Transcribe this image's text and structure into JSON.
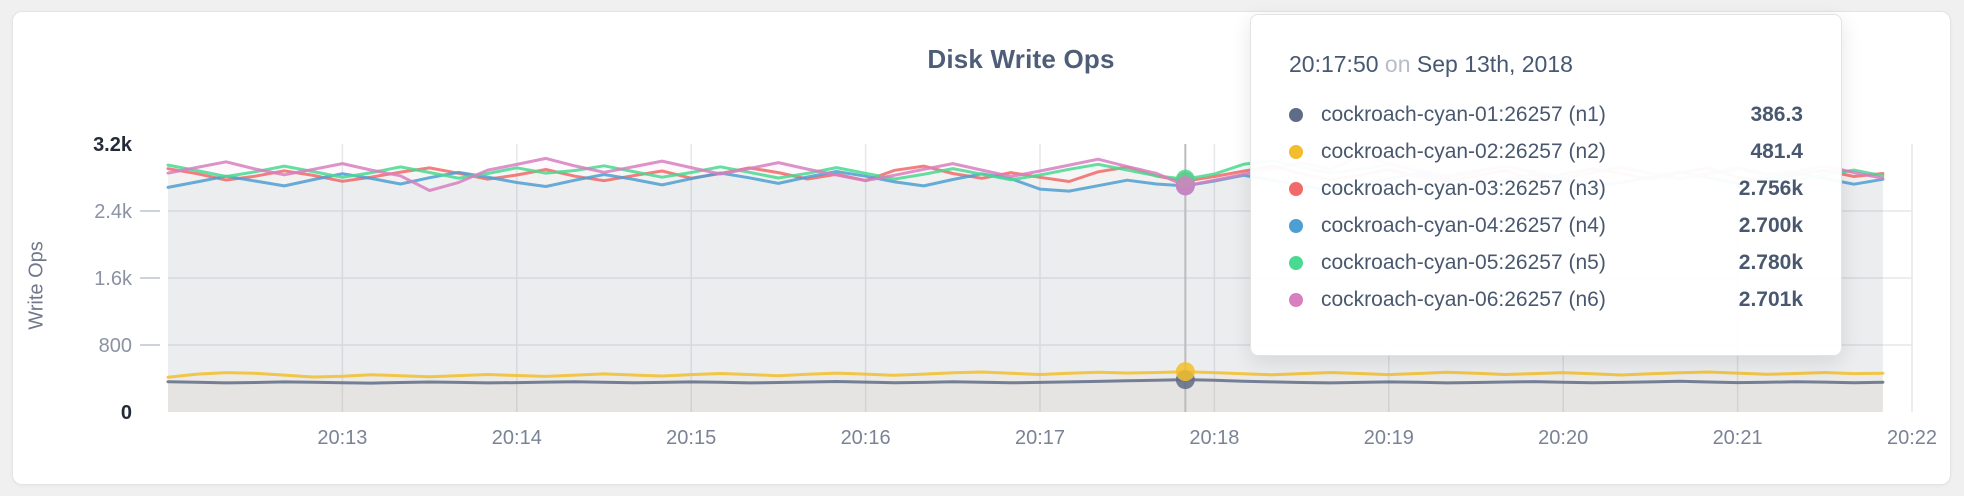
{
  "card": {
    "kind": "metric-panel"
  },
  "chart_data": {
    "type": "line",
    "title": "Disk Write Ops",
    "xlabel": "",
    "ylabel": "Write Ops",
    "ylim": [
      0,
      3200
    ],
    "grid": true,
    "legend_position": "tooltip",
    "x_domain": [
      "20:12:00",
      "20:22:00"
    ],
    "x_start": "20:12:00",
    "x_step_seconds": 10,
    "hover_time": "20:17:50",
    "x_ticks": [
      {
        "label": "20:13",
        "time": "20:13:00"
      },
      {
        "label": "20:14",
        "time": "20:14:00"
      },
      {
        "label": "20:15",
        "time": "20:15:00"
      },
      {
        "label": "20:16",
        "time": "20:16:00"
      },
      {
        "label": "20:17",
        "time": "20:17:00"
      },
      {
        "label": "20:18",
        "time": "20:18:00"
      },
      {
        "label": "20:19",
        "time": "20:19:00"
      },
      {
        "label": "20:20",
        "time": "20:20:00"
      },
      {
        "label": "20:21",
        "time": "20:21:00"
      },
      {
        "label": "20:22",
        "time": "20:22:00"
      }
    ],
    "y_ticks": [
      {
        "label": "3.2k",
        "value": 3200,
        "dark": true,
        "grid": false
      },
      {
        "label": "2.4k",
        "value": 2400,
        "dark": false,
        "grid": true
      },
      {
        "label": "1.6k",
        "value": 1600,
        "dark": false,
        "grid": true
      },
      {
        "label": "800",
        "value": 800,
        "dark": false,
        "grid": true
      },
      {
        "label": "0",
        "value": 0,
        "dark": true,
        "grid": false
      }
    ],
    "series": [
      {
        "name": "cockroach-cyan-01:26257 (n1)",
        "color": "#5F6C87",
        "values": [
          362,
          355,
          348,
          352,
          360,
          356,
          350,
          345,
          352,
          358,
          353,
          347,
          351,
          357,
          362,
          356,
          349,
          354,
          360,
          355,
          348,
          352,
          358,
          364,
          357,
          350,
          354,
          361,
          356,
          349,
          353,
          359,
          365,
          372,
          380,
          386.3,
          378,
          368,
          359,
          352,
          347,
          353,
          360,
          355,
          348,
          352,
          358,
          363,
          356,
          349,
          354,
          360,
          366,
          358,
          351,
          355,
          362,
          357,
          350,
          356
        ]
      },
      {
        "name": "cockroach-cyan-02:26257 (n2)",
        "color": "#F2BE2C",
        "values": [
          415,
          452,
          470,
          462,
          440,
          418,
          428,
          445,
          432,
          420,
          435,
          448,
          436,
          425,
          440,
          455,
          442,
          430,
          446,
          460,
          448,
          434,
          450,
          464,
          452,
          438,
          452,
          468,
          478,
          462,
          448,
          462,
          475,
          466,
          472,
          481.4,
          470,
          456,
          444,
          458,
          472,
          460,
          446,
          460,
          474,
          462,
          448,
          458,
          470,
          456,
          442,
          456,
          468,
          478,
          464,
          450,
          460,
          472,
          458,
          463
        ]
      },
      {
        "name": "cockroach-cyan-03:26257 (n3)",
        "color": "#F16969",
        "values": [
          2905,
          2845,
          2770,
          2815,
          2880,
          2825,
          2755,
          2805,
          2865,
          2915,
          2850,
          2780,
          2830,
          2895,
          2815,
          2762,
          2822,
          2878,
          2792,
          2848,
          2915,
          2858,
          2782,
          2838,
          2764,
          2886,
          2936,
          2848,
          2790,
          2858,
          2802,
          2752,
          2868,
          2925,
          2818,
          2756,
          2812,
          2876,
          2934,
          2846,
          2772,
          2828,
          2896,
          2812,
          2754,
          2820,
          2886,
          2764,
          2840,
          2906,
          2848,
          2780,
          2856,
          2916,
          2800,
          2762,
          2828,
          2886,
          2812,
          2848
        ]
      },
      {
        "name": "cockroach-cyan-04:26257 (n4)",
        "color": "#4E9FD1",
        "values": [
          2682,
          2748,
          2815,
          2758,
          2700,
          2775,
          2845,
          2788,
          2722,
          2798,
          2862,
          2805,
          2740,
          2692,
          2768,
          2836,
          2778,
          2712,
          2786,
          2854,
          2796,
          2730,
          2806,
          2872,
          2815,
          2748,
          2700,
          2776,
          2844,
          2786,
          2662,
          2638,
          2702,
          2768,
          2722,
          2700,
          2758,
          2826,
          2768,
          2702,
          2652,
          2718,
          2786,
          2848,
          2780,
          2712,
          2770,
          2838,
          2776,
          2702,
          2738,
          2806,
          2866,
          2798,
          2730,
          2788,
          2854,
          2788,
          2720,
          2778
        ]
      },
      {
        "name": "cockroach-cyan-05:26257 (n5)",
        "color": "#49D990",
        "values": [
          2948,
          2882,
          2812,
          2868,
          2936,
          2870,
          2802,
          2858,
          2926,
          2860,
          2792,
          2848,
          2916,
          2852,
          2884,
          2940,
          2872,
          2804,
          2860,
          2928,
          2862,
          2794,
          2850,
          2918,
          2850,
          2782,
          2838,
          2906,
          2840,
          2772,
          2830,
          2898,
          2958,
          2890,
          2822,
          2780,
          2842,
          2958,
          3002,
          2920,
          2852,
          2898,
          2956,
          2888,
          2820,
          2878,
          2936,
          2868,
          2800,
          2858,
          2918,
          2850,
          2782,
          2840,
          2898,
          2832,
          2770,
          2830,
          2888,
          2820
        ]
      },
      {
        "name": "cockroach-cyan-06:26257 (n6)",
        "color": "#D77FBF",
        "values": [
          2852,
          2920,
          2988,
          2902,
          2832,
          2898,
          2966,
          2888,
          2820,
          2645,
          2742,
          2888,
          2956,
          3028,
          2938,
          2862,
          2928,
          2996,
          2918,
          2842,
          2908,
          2978,
          2900,
          2830,
          2762,
          2828,
          2898,
          2966,
          2888,
          2812,
          2878,
          2948,
          3018,
          2930,
          2850,
          2701,
          2768,
          2838,
          2908,
          2978,
          2898,
          3058,
          2968,
          2878,
          2802,
          2868,
          2938,
          2858,
          2790,
          2858,
          2928,
          2850,
          2782,
          2848,
          2918,
          2840,
          2868,
          2938,
          2858,
          2792
        ]
      }
    ]
  },
  "tooltip": {
    "time": "20:17:50",
    "conjunction": "on",
    "date": "Sep 13th, 2018",
    "rows": [
      {
        "label": "cockroach-cyan-01:26257 (n1)",
        "value": "386.3",
        "color": "#5F6C87"
      },
      {
        "label": "cockroach-cyan-02:26257 (n2)",
        "value": "481.4",
        "color": "#F2BE2C"
      },
      {
        "label": "cockroach-cyan-03:26257 (n3)",
        "value": "2.756k",
        "color": "#F16969"
      },
      {
        "label": "cockroach-cyan-04:26257 (n4)",
        "value": "2.700k",
        "color": "#4E9FD1"
      },
      {
        "label": "cockroach-cyan-05:26257 (n5)",
        "value": "2.780k",
        "color": "#49D990"
      },
      {
        "label": "cockroach-cyan-06:26257 (n6)",
        "value": "2.701k",
        "color": "#D77FBF"
      }
    ]
  }
}
